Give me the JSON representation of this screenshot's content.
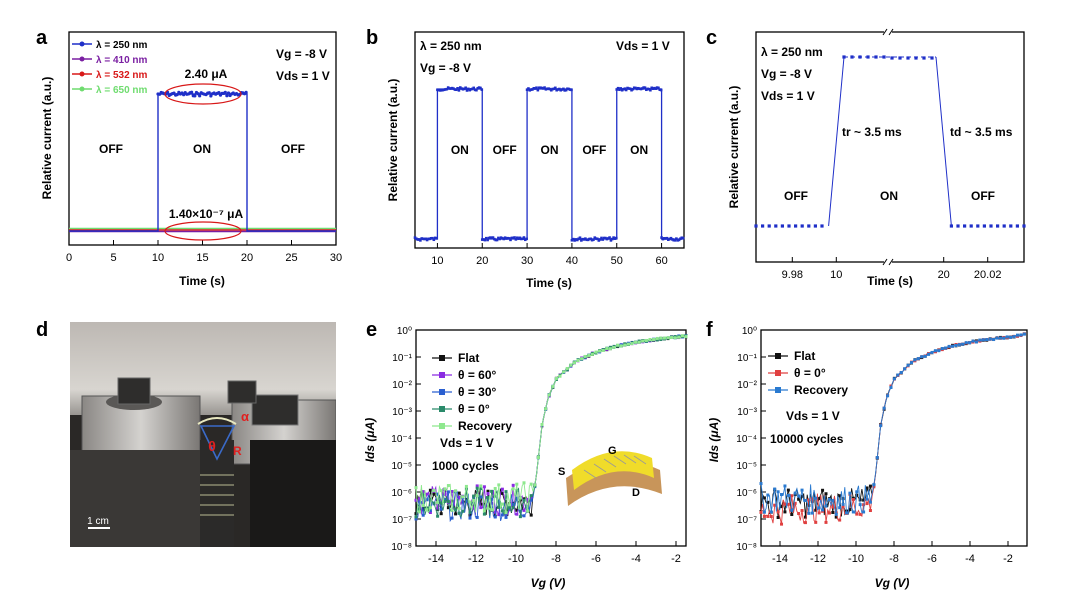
{
  "chart_data": [
    {
      "panel": "a",
      "type": "line",
      "xlabel": "Time (s)",
      "ylabel": "Relative current (a.u.)",
      "xlim": [
        0,
        30
      ],
      "xticks": [
        "0",
        "5",
        "10",
        "15",
        "20",
        "25",
        "30"
      ],
      "legend": [
        "λ = 250 nm",
        "λ = 410 nm",
        "λ = 532 nm",
        "λ = 650 nm"
      ],
      "legend_colors": [
        "#1f2fc8",
        "#7a1fa2",
        "#d81818",
        "#6fdc6f"
      ],
      "conditions": [
        "Vg = -8 V",
        "Vds = 1 V"
      ],
      "annotations": {
        "on_current": "2.40 μA",
        "off_current": "1.40×10⁻⁷ μA",
        "off1": "OFF",
        "on": "ON",
        "off2": "OFF"
      },
      "series": [
        {
          "name": "λ = 250 nm",
          "x": [
            0,
            10,
            10,
            20,
            20,
            30
          ],
          "y": [
            0,
            0,
            1,
            1,
            0,
            0
          ]
        },
        {
          "name": "λ = 410 nm",
          "x": [
            0,
            30
          ],
          "y": [
            0.02,
            0.02
          ]
        },
        {
          "name": "λ = 532 nm",
          "x": [
            0,
            30
          ],
          "y": [
            0.01,
            0.01
          ]
        },
        {
          "name": "λ = 650 nm",
          "x": [
            0,
            30
          ],
          "y": [
            0.03,
            0.03
          ]
        }
      ]
    },
    {
      "panel": "b",
      "type": "line",
      "xlabel": "Time (s)",
      "ylabel": "Relative current (a.u.)",
      "xlim": [
        5,
        65
      ],
      "xticks": [
        "10",
        "20",
        "30",
        "40",
        "50",
        "60"
      ],
      "conditions": [
        "λ = 250 nm",
        "Vg = -8 V",
        "Vds = 1 V"
      ],
      "states": [
        "ON",
        "OFF",
        "ON",
        "OFF",
        "ON"
      ],
      "series": [
        {
          "name": "",
          "x": [
            5,
            10,
            10,
            20,
            20,
            30,
            30,
            40,
            40,
            50,
            50,
            60,
            60,
            65
          ],
          "y": [
            0,
            0,
            1,
            1,
            0,
            0,
            1,
            1,
            0,
            0,
            1,
            1,
            0,
            0
          ]
        }
      ]
    },
    {
      "panel": "c",
      "type": "scatter",
      "xlabel": "Time (s)",
      "ylabel": "Relative current (a.u.)",
      "xticks": [
        "9.98",
        "10",
        "20",
        "20.02"
      ],
      "conditions": [
        "λ = 250 nm",
        "Vg = -8 V",
        "Vds = 1 V"
      ],
      "annotations": {
        "tr": "tr ~ 3.5 ms",
        "td": "td ~ 3.5 ms",
        "off1": "OFF",
        "on": "ON",
        "off2": "OFF"
      },
      "series": [
        {
          "name": "",
          "x": [
            9.9635,
            9.97,
            9.98,
            9.99,
            9.9965,
            10.0,
            10.0035,
            19.9965,
            20.0,
            20.0035,
            20.01,
            20.02,
            20.03,
            20.0365
          ],
          "y": [
            0,
            0,
            0,
            0,
            0,
            0.5,
            1,
            1,
            0.5,
            0,
            0,
            0,
            0,
            0
          ]
        }
      ]
    },
    {
      "panel": "e",
      "type": "line",
      "xlabel": "Vg (V)",
      "ylabel": "Ids (μA)",
      "xlim": [
        -15,
        -1.5
      ],
      "ylim": [
        1e-08,
        1
      ],
      "log_y": true,
      "xticks": [
        "-14",
        "-12",
        "-10",
        "-8",
        "-6",
        "-4",
        "-2"
      ],
      "yticks": [
        "10⁰",
        "10⁻¹",
        "10⁻²",
        "10⁻³",
        "10⁻⁴",
        "10⁻⁵",
        "10⁻⁶",
        "10⁻⁷",
        "10⁻⁸"
      ],
      "legend": [
        "Flat",
        "θ = 60°",
        "θ = 30°",
        "θ = 0°",
        "Recovery"
      ],
      "legend_colors": [
        "#111111",
        "#8a2be2",
        "#2a5fd0",
        "#2a8a6a",
        "#8ee88e"
      ],
      "conditions": [
        "Vds = 1 V",
        "1000 cycles"
      ],
      "inset_labels": [
        "G",
        "S",
        "D"
      ],
      "series": [
        {
          "name": "Flat",
          "x": [
            -15,
            -10,
            -9.2,
            -9,
            -8.7,
            -8.4,
            -8,
            -7,
            -6,
            -5,
            -4,
            -3,
            -2,
            -1.5
          ],
          "y": [
            4e-07,
            4e-07,
            5e-07,
            3e-06,
            0.0003,
            0.003,
            0.015,
            0.07,
            0.15,
            0.25,
            0.35,
            0.45,
            0.55,
            0.6
          ]
        },
        {
          "name": "θ = 60°",
          "x": [
            -15,
            -10,
            -9.2,
            -9,
            -8.7,
            -8.4,
            -8,
            -7,
            -6,
            -5,
            -4,
            -3,
            -2,
            -1.5
          ],
          "y": [
            5e-07,
            5e-07,
            6e-07,
            3e-06,
            0.0003,
            0.003,
            0.015,
            0.07,
            0.15,
            0.25,
            0.35,
            0.45,
            0.55,
            0.6
          ]
        },
        {
          "name": "θ = 30°",
          "x": [
            -15,
            -10,
            -9.2,
            -9,
            -8.7,
            -8.4,
            -8,
            -7,
            -6,
            -5,
            -4,
            -3,
            -2,
            -1.5
          ],
          "y": [
            3e-07,
            3e-07,
            4e-07,
            3e-06,
            0.0003,
            0.003,
            0.015,
            0.07,
            0.15,
            0.25,
            0.35,
            0.45,
            0.55,
            0.6
          ]
        },
        {
          "name": "θ = 0°",
          "x": [
            -15,
            -10,
            -9.2,
            -9,
            -8.7,
            -8.4,
            -8,
            -7,
            -6,
            -5,
            -4,
            -3,
            -2,
            -1.5
          ],
          "y": [
            4e-07,
            4e-07,
            5e-07,
            3e-06,
            0.0003,
            0.003,
            0.015,
            0.07,
            0.15,
            0.25,
            0.35,
            0.45,
            0.55,
            0.6
          ]
        },
        {
          "name": "Recovery",
          "x": [
            -15,
            -10,
            -9.2,
            -9,
            -8.7,
            -8.4,
            -8,
            -7,
            -6,
            -5,
            -4,
            -3,
            -2,
            -1.5
          ],
          "y": [
            6e-07,
            6e-07,
            7e-07,
            3e-06,
            0.0003,
            0.003,
            0.015,
            0.07,
            0.15,
            0.25,
            0.35,
            0.45,
            0.55,
            0.6
          ]
        }
      ]
    },
    {
      "panel": "f",
      "type": "line",
      "xlabel": "Vg (V)",
      "ylabel": "Ids (μA)",
      "xlim": [
        -15,
        -1
      ],
      "ylim": [
        1e-08,
        1
      ],
      "log_y": true,
      "xticks": [
        "-14",
        "-12",
        "-10",
        "-8",
        "-6",
        "-4",
        "-2"
      ],
      "yticks": [
        "10⁰",
        "10⁻¹",
        "10⁻²",
        "10⁻³",
        "10⁻⁴",
        "10⁻⁵",
        "10⁻⁶",
        "10⁻⁷",
        "10⁻⁸"
      ],
      "legend": [
        "Flat",
        "θ = 0°",
        "Recovery"
      ],
      "legend_colors": [
        "#111111",
        "#e04040",
        "#2a7ad0"
      ],
      "conditions": [
        "Vds = 1 V",
        "10000 cycles"
      ],
      "series": [
        {
          "name": "Flat",
          "x": [
            -15,
            -10,
            -9.2,
            -9,
            -8.7,
            -8.4,
            -8,
            -7,
            -6,
            -5,
            -4,
            -3,
            -2,
            -1
          ],
          "y": [
            4e-07,
            4e-07,
            5e-07,
            3e-06,
            0.0003,
            0.003,
            0.015,
            0.07,
            0.15,
            0.25,
            0.35,
            0.45,
            0.55,
            0.7
          ]
        },
        {
          "name": "θ = 0°",
          "x": [
            -15,
            -10,
            -9.2,
            -9,
            -8.7,
            -8.4,
            -8,
            -7,
            -6,
            -5,
            -4,
            -3,
            -2,
            -1
          ],
          "y": [
            2e-07,
            3e-07,
            4e-07,
            3e-06,
            0.0003,
            0.003,
            0.015,
            0.07,
            0.15,
            0.25,
            0.35,
            0.45,
            0.55,
            0.7
          ]
        },
        {
          "name": "Recovery",
          "x": [
            -15,
            -10,
            -9.2,
            -9,
            -8.7,
            -8.4,
            -8,
            -7,
            -6,
            -5,
            -4,
            -3,
            -2,
            -1
          ],
          "y": [
            6e-07,
            5e-07,
            6e-07,
            3e-06,
            0.0003,
            0.003,
            0.015,
            0.07,
            0.15,
            0.25,
            0.35,
            0.45,
            0.55,
            0.7
          ]
        }
      ]
    }
  ],
  "panels": {
    "a": {
      "label": "a"
    },
    "b": {
      "label": "b"
    },
    "c": {
      "label": "c"
    },
    "d": {
      "label": "d",
      "scale_bar": "1 cm",
      "angle_label": "θ",
      "bend_labels": [
        "α",
        "R"
      ]
    },
    "e": {
      "label": "e"
    },
    "f": {
      "label": "f"
    }
  }
}
